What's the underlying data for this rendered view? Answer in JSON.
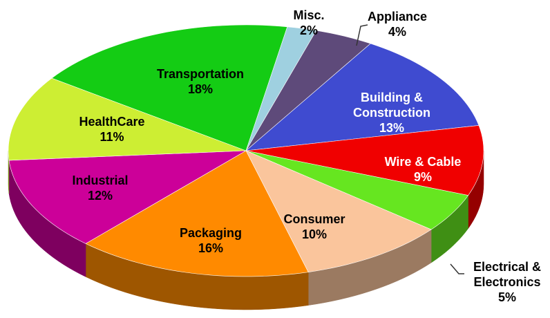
{
  "chart_data": {
    "type": "pie",
    "categories": [
      "Misc.",
      "Appliance",
      "Building & Construction",
      "Wire & Cable",
      "Electrical & Electronics",
      "Consumer",
      "Packaging",
      "Industrial",
      "HealthCare",
      "Transportation"
    ],
    "values": [
      2,
      4,
      13,
      9,
      5,
      10,
      16,
      12,
      11,
      18
    ],
    "value_labels": [
      "2%",
      "4%",
      "13%",
      "9%",
      "5%",
      "10%",
      "16%",
      "12%",
      "11%",
      "18%"
    ],
    "colors": [
      "#9fd0e0",
      "#5e4a7a",
      "#3f4bd0",
      "#f00000",
      "#66e620",
      "#fac59c",
      "#ff8a00",
      "#cc0099",
      "#cdee33",
      "#14cc14"
    ]
  }
}
